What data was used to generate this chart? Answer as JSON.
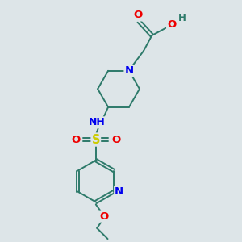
{
  "bg_color": "#dde5e8",
  "bond_color": "#2d7a6a",
  "N_color": "#0000ee",
  "O_color": "#ee0000",
  "S_color": "#cccc00",
  "font_size": 9.5,
  "lw": 1.4,
  "figsize": [
    3.0,
    3.0
  ],
  "dpi": 100,
  "xlim": [
    0,
    10
  ],
  "ylim": [
    0,
    10
  ]
}
